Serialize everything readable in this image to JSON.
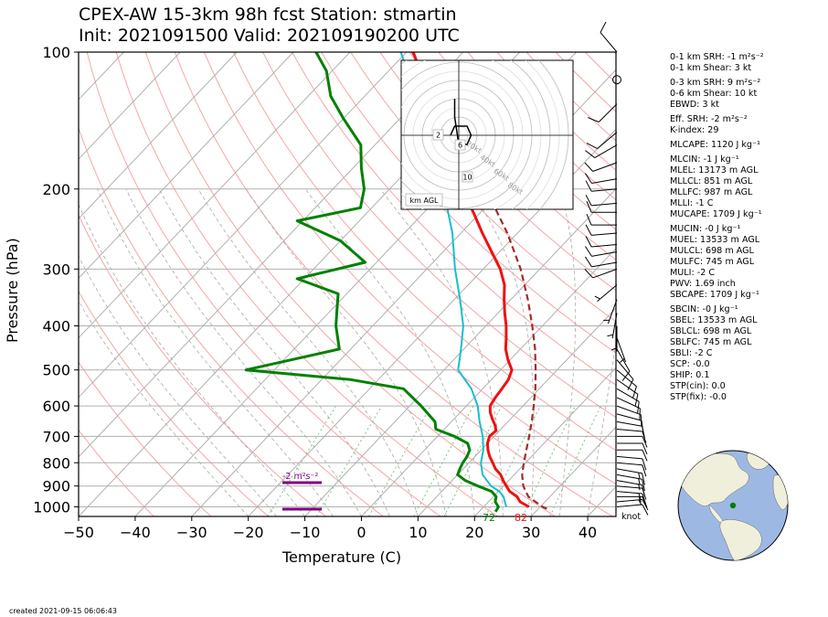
{
  "title": {
    "line1": "CPEX-AW 15-3km  98h fcst  Station: stmartin",
    "line2": "Init: 2021091500  Valid: 202109190200 UTC"
  },
  "created": "created 2021-09-15 06:06:43",
  "knot_label": "knot",
  "stats": [
    {
      "key": "srh1",
      "text": "0-1 km SRH: -1 m²s⁻²"
    },
    {
      "key": "shear1",
      "text": "0-1 km Shear: 3 kt"
    },
    {
      "key": "srh3",
      "text": "0-3 km SRH: 9 m²s⁻²",
      "gap": true
    },
    {
      "key": "shear6",
      "text": "0-6 km Shear: 10 kt"
    },
    {
      "key": "ebwd",
      "text": "EBWD: 3 kt"
    },
    {
      "key": "effsrh",
      "text": "Eff. SRH: -2 m²s⁻²",
      "gap": true
    },
    {
      "key": "kindex",
      "text": "K-index: 29"
    },
    {
      "key": "mlcape",
      "text": "MLCAPE: 1120 J kg⁻¹",
      "gap": true
    },
    {
      "key": "mlcin",
      "text": "MLCIN: -1 J kg⁻¹",
      "gap": true
    },
    {
      "key": "mlel",
      "text": "MLEL: 13173 m AGL"
    },
    {
      "key": "mllcl",
      "text": "MLLCL: 851 m AGL"
    },
    {
      "key": "mllfc",
      "text": "MLLFC: 987 m AGL"
    },
    {
      "key": "mlli",
      "text": "MLLI: -1 C"
    },
    {
      "key": "mucape",
      "text": "MUCAPE: 1709 J kg⁻¹"
    },
    {
      "key": "mucin",
      "text": "MUCIN: -0 J kg⁻¹",
      "gap": true
    },
    {
      "key": "muel",
      "text": "MUEL: 13533 m AGL"
    },
    {
      "key": "mulcl",
      "text": "MULCL: 698 m AGL"
    },
    {
      "key": "mulfc",
      "text": "MULFC: 745 m AGL"
    },
    {
      "key": "muli",
      "text": "MULI: -2 C"
    },
    {
      "key": "pwv",
      "text": "PWV: 1.69 inch"
    },
    {
      "key": "sbcape",
      "text": "SBCAPE: 1709 J kg⁻¹"
    },
    {
      "key": "sbcin",
      "text": "SBCIN: -0 J kg⁻¹",
      "gap": true
    },
    {
      "key": "sbel",
      "text": "SBEL: 13533 m AGL"
    },
    {
      "key": "sblcl",
      "text": "SBLCL: 698 m AGL"
    },
    {
      "key": "sblfc",
      "text": "SBLFC: 745 m AGL"
    },
    {
      "key": "sbli",
      "text": "SBLI: -2 C"
    },
    {
      "key": "scp",
      "text": "SCP: -0.0"
    },
    {
      "key": "ship",
      "text": "SHIP: 0.1"
    },
    {
      "key": "stpcin",
      "text": "STP(cin): 0.0"
    },
    {
      "key": "stpfix",
      "text": "STP(fix): -0.0"
    }
  ],
  "colors": {
    "temperature": "#ee1111",
    "dewpoint": "#008000",
    "wetbulb": "#17becf",
    "parcel": "#a52a2a",
    "srh_bar": "#800080",
    "dry_adiabat": "#f4a6a6",
    "moist_adiabat": "#aaaaaa",
    "mixing_ratio": "#7ac67a",
    "land": "#efefdb",
    "ocean": "#9db9e3"
  },
  "chart_data": {
    "type": "skew-t",
    "xlabel": "Temperature (C)",
    "ylabel": "Pressure (hPa)",
    "xlim": [
      -50,
      45
    ],
    "ylim": [
      1050,
      100
    ],
    "xticks": [
      -50,
      -40,
      -30,
      -20,
      -10,
      0,
      10,
      20,
      30,
      40
    ],
    "yticks": [
      100,
      200,
      300,
      400,
      500,
      600,
      700,
      800,
      900,
      1000
    ],
    "surface_temp_label": "82",
    "surface_dewpoint_label": "72",
    "srh_label": "-2 m²s⁻²",
    "temperature": [
      [
        1000,
        28.0
      ],
      [
        975,
        25.6
      ],
      [
        950,
        24.2
      ],
      [
        925,
        22.0
      ],
      [
        900,
        20.5
      ],
      [
        875,
        19.0
      ],
      [
        850,
        17.6
      ],
      [
        825,
        15.7
      ],
      [
        800,
        14.2
      ],
      [
        775,
        12.6
      ],
      [
        750,
        11.2
      ],
      [
        725,
        10.0
      ],
      [
        700,
        9.2
      ],
      [
        680,
        9.4
      ],
      [
        660,
        8.2
      ],
      [
        640,
        6.7
      ],
      [
        620,
        5.3
      ],
      [
        600,
        4.2
      ],
      [
        575,
        3.7
      ],
      [
        550,
        3.4
      ],
      [
        525,
        3.0
      ],
      [
        500,
        2.0
      ],
      [
        475,
        -0.4
      ],
      [
        450,
        -2.6
      ],
      [
        425,
        -4.4
      ],
      [
        400,
        -6.4
      ],
      [
        375,
        -8.8
      ],
      [
        350,
        -11.2
      ],
      [
        325,
        -13.6
      ],
      [
        300,
        -17.0
      ],
      [
        275,
        -21.4
      ],
      [
        250,
        -26.2
      ],
      [
        225,
        -31.3
      ],
      [
        200,
        -37.2
      ],
      [
        175,
        -43.3
      ],
      [
        150,
        -50.2
      ],
      [
        125,
        -58.6
      ],
      [
        100,
        -68.8
      ]
    ],
    "dewpoint": [
      [
        1025,
        22.9
      ],
      [
        1000,
        22.6
      ],
      [
        975,
        21.2
      ],
      [
        950,
        20.5
      ],
      [
        925,
        18.8
      ],
      [
        900,
        15.5
      ],
      [
        875,
        12.3
      ],
      [
        850,
        10.0
      ],
      [
        825,
        9.4
      ],
      [
        800,
        8.9
      ],
      [
        775,
        8.6
      ],
      [
        750,
        8.0
      ],
      [
        725,
        6.5
      ],
      [
        700,
        3.0
      ],
      [
        675,
        -1.5
      ],
      [
        650,
        -2.9
      ],
      [
        600,
        -8.0
      ],
      [
        550,
        -14.0
      ],
      [
        525,
        -25.0
      ],
      [
        500,
        -45.0
      ],
      [
        450,
        -32.0
      ],
      [
        400,
        -36.5
      ],
      [
        375,
        -38.5
      ],
      [
        340,
        -41.5
      ],
      [
        315,
        -51.3
      ],
      [
        290,
        -42.0
      ],
      [
        260,
        -50.0
      ],
      [
        235,
        -61.0
      ],
      [
        220,
        -52.0
      ],
      [
        200,
        -54.5
      ],
      [
        180,
        -58.5
      ],
      [
        160,
        -62.5
      ],
      [
        140,
        -70.0
      ],
      [
        125,
        -76.0
      ],
      [
        110,
        -81.0
      ],
      [
        100,
        -86.0
      ]
    ],
    "wetbulb": [
      [
        1000,
        24.0
      ],
      [
        950,
        21.8
      ],
      [
        925,
        20.2
      ],
      [
        900,
        17.8
      ],
      [
        850,
        14.4
      ],
      [
        800,
        12.1
      ],
      [
        750,
        10.4
      ],
      [
        700,
        8.0
      ],
      [
        650,
        5.0
      ],
      [
        600,
        2.0
      ],
      [
        550,
        -2.0
      ],
      [
        500,
        -7.5
      ],
      [
        450,
        -10.5
      ],
      [
        400,
        -14.0
      ],
      [
        350,
        -19.0
      ],
      [
        300,
        -25.0
      ],
      [
        250,
        -31.5
      ],
      [
        200,
        -40.5
      ],
      [
        175,
        -46.5
      ],
      [
        150,
        -52.5
      ],
      [
        125,
        -61.0
      ],
      [
        100,
        -71.0
      ]
    ],
    "parcel": [
      [
        1010,
        31.5
      ],
      [
        1000,
        30.4
      ],
      [
        950,
        26.2
      ],
      [
        900,
        23.5
      ],
      [
        850,
        21.4
      ],
      [
        800,
        19.7
      ],
      [
        750,
        18.0
      ],
      [
        700,
        16.2
      ],
      [
        650,
        14.2
      ],
      [
        600,
        11.9
      ],
      [
        550,
        9.3
      ],
      [
        500,
        6.2
      ],
      [
        450,
        2.6
      ],
      [
        400,
        -1.8
      ],
      [
        350,
        -7.0
      ],
      [
        300,
        -13.4
      ],
      [
        250,
        -21.8
      ],
      [
        200,
        -33.0
      ],
      [
        150,
        -48.0
      ],
      [
        100,
        -69.0
      ]
    ],
    "wind_barbs": [
      {
        "p": 1000,
        "dir": 85,
        "spd": 10
      },
      {
        "p": 975,
        "dir": 85,
        "spd": 15
      },
      {
        "p": 950,
        "dir": 90,
        "spd": 15
      },
      {
        "p": 925,
        "dir": 95,
        "spd": 15
      },
      {
        "p": 900,
        "dir": 95,
        "spd": 10
      },
      {
        "p": 875,
        "dir": 100,
        "spd": 15
      },
      {
        "p": 850,
        "dir": 100,
        "spd": 15
      },
      {
        "p": 825,
        "dir": 100,
        "spd": 15
      },
      {
        "p": 800,
        "dir": 95,
        "spd": 10
      },
      {
        "p": 775,
        "dir": 95,
        "spd": 10
      },
      {
        "p": 750,
        "dir": 90,
        "spd": 10
      },
      {
        "p": 725,
        "dir": 90,
        "spd": 10
      },
      {
        "p": 700,
        "dir": 90,
        "spd": 10
      },
      {
        "p": 675,
        "dir": 95,
        "spd": 10
      },
      {
        "p": 650,
        "dir": 100,
        "spd": 10
      },
      {
        "p": 625,
        "dir": 105,
        "spd": 10
      },
      {
        "p": 600,
        "dir": 110,
        "spd": 10
      },
      {
        "p": 575,
        "dir": 115,
        "spd": 10
      },
      {
        "p": 550,
        "dir": 120,
        "spd": 10
      },
      {
        "p": 525,
        "dir": 125,
        "spd": 10
      },
      {
        "p": 500,
        "dir": 130,
        "spd": 10
      },
      {
        "p": 475,
        "dir": 140,
        "spd": 10
      },
      {
        "p": 450,
        "dir": 150,
        "spd": 10
      },
      {
        "p": 425,
        "dir": 160,
        "spd": 5
      },
      {
        "p": 400,
        "dir": 180,
        "spd": 5
      },
      {
        "p": 375,
        "dir": 190,
        "spd": 5
      },
      {
        "p": 350,
        "dir": 200,
        "spd": 5
      },
      {
        "p": 325,
        "dir": 230,
        "spd": 5
      },
      {
        "p": 300,
        "dir": 250,
        "spd": 10
      },
      {
        "p": 290,
        "dir": 260,
        "spd": 10
      },
      {
        "p": 275,
        "dir": 260,
        "spd": 10
      },
      {
        "p": 265,
        "dir": 265,
        "spd": 10
      },
      {
        "p": 250,
        "dir": 265,
        "spd": 10
      },
      {
        "p": 240,
        "dir": 270,
        "spd": 10
      },
      {
        "p": 225,
        "dir": 270,
        "spd": 10
      },
      {
        "p": 215,
        "dir": 265,
        "spd": 10
      },
      {
        "p": 200,
        "dir": 265,
        "spd": 10
      },
      {
        "p": 190,
        "dir": 260,
        "spd": 10
      },
      {
        "p": 175,
        "dir": 250,
        "spd": 10
      },
      {
        "p": 160,
        "dir": 240,
        "spd": 10
      },
      {
        "p": 150,
        "dir": 230,
        "spd": 10
      },
      {
        "p": 130,
        "dir": 225,
        "spd": 10
      },
      {
        "p": 115,
        "dir": 0,
        "spd": 0
      },
      {
        "p": 100,
        "dir": 320,
        "spd": 10
      }
    ],
    "hodograph": {
      "ring_labels": [
        "20kt",
        "40kt",
        "60kt",
        "80kt"
      ],
      "height_labels": [
        "2",
        "6",
        "10"
      ],
      "legend": "km AGL",
      "trace": [
        [
          -2,
          0
        ],
        [
          -1,
          -1
        ],
        [
          1,
          -1
        ],
        [
          2,
          -1
        ],
        [
          3,
          0
        ],
        [
          2,
          1
        ],
        [
          0,
          1
        ],
        [
          -1,
          -2
        ],
        [
          -1,
          -3
        ],
        [
          -1,
          -4
        ]
      ]
    },
    "map": {
      "station_label": "stmartin",
      "station_lon": -63.1,
      "station_lat": 18.0,
      "center_lon": -55,
      "center_lat": 20
    }
  }
}
